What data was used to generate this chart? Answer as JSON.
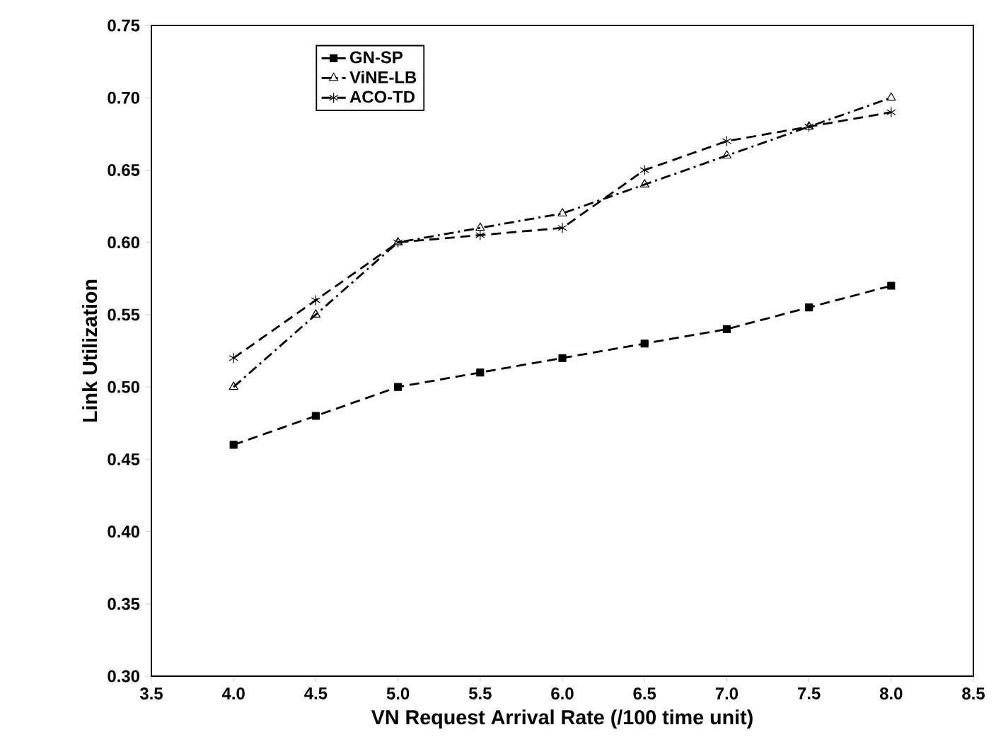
{
  "chart_data": {
    "type": "line",
    "xlabel": "VN Request Arrival Rate (/100 time unit)",
    "ylabel": "Link Utilization",
    "x": [
      4.0,
      4.5,
      5.0,
      5.5,
      6.0,
      6.5,
      7.0,
      7.5,
      8.0
    ],
    "series": [
      {
        "name": "GN-SP",
        "color": "#000000",
        "marker": "square",
        "line_style": "dashed",
        "values": [
          0.46,
          0.48,
          0.5,
          0.51,
          0.52,
          0.53,
          0.54,
          0.555,
          0.57
        ]
      },
      {
        "name": "ViNE-LB",
        "color": "#000000",
        "marker": "triangle",
        "line_style": "dashdot",
        "values": [
          0.5,
          0.55,
          0.6,
          0.61,
          0.62,
          0.64,
          0.66,
          0.68,
          0.7
        ]
      },
      {
        "name": "ACO-TD",
        "color": "#000000",
        "marker": "cross",
        "line_style": "dashed",
        "values": [
          0.52,
          0.56,
          0.6,
          0.605,
          0.61,
          0.65,
          0.67,
          0.68,
          0.69
        ]
      }
    ],
    "xlim": [
      3.5,
      8.5
    ],
    "xticks": [
      3.5,
      {
        "value": 4.0,
        "label": "4.0"
      },
      4.5,
      {
        "value": 5.0,
        "label": "5.0"
      },
      5.5,
      {
        "value": 6.0,
        "label": "6.0"
      },
      6.5,
      {
        "value": 7.0,
        "label": "7.0"
      },
      7.5,
      {
        "value": 8.0,
        "label": "8.0"
      },
      8.5
    ],
    "ylim": [
      0.3,
      0.75
    ],
    "yticks": [
      {
        "value": 0.3,
        "label": "0.30"
      },
      0.35,
      {
        "value": 0.4,
        "label": "0.40"
      },
      0.45,
      {
        "value": 0.5,
        "label": "0.50"
      },
      0.55,
      {
        "value": 0.6,
        "label": "0.60"
      },
      0.65,
      {
        "value": 0.7,
        "label": "0.70"
      },
      0.75
    ],
    "grid": false,
    "legend": "top left"
  }
}
